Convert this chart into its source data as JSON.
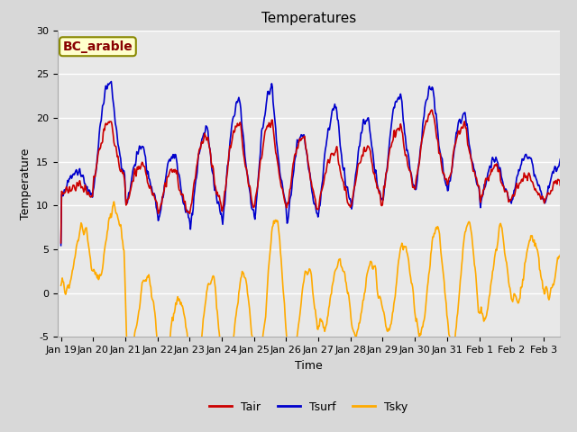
{
  "title": "Temperatures",
  "xlabel": "Time",
  "ylabel": "Temperature",
  "ylim": [
    -5,
    30
  ],
  "xlim_days": [
    -0.1,
    15.5
  ],
  "x_tick_labels": [
    "Jan 19",
    "Jan 20",
    "Jan 21",
    "Jan 22",
    "Jan 23",
    "Jan 24",
    "Jan 25",
    "Jan 26",
    "Jan 27",
    "Jan 28",
    "Jan 29",
    "Jan 30",
    "Jan 31",
    "Feb 1",
    "Feb 2",
    "Feb 3"
  ],
  "x_tick_positions": [
    0,
    1,
    2,
    3,
    4,
    5,
    6,
    7,
    8,
    9,
    10,
    11,
    12,
    13,
    14,
    15
  ],
  "yticks": [
    -5,
    0,
    5,
    10,
    15,
    20,
    25,
    30
  ],
  "color_tair": "#cc0000",
  "color_tsurf": "#0000cc",
  "color_tsky": "#ffaa00",
  "legend_label_tair": "Tair",
  "legend_label_tsurf": "Tsurf",
  "legend_label_tsky": "Tsky",
  "annotation_text": "BC_arable",
  "annotation_box_facecolor": "#ffffcc",
  "annotation_text_color": "#880000",
  "annotation_box_edgecolor": "#888800",
  "fig_facecolor": "#d8d8d8",
  "ax_facecolor": "#e8e8e8",
  "grid_color": "#ffffff",
  "title_fontsize": 11,
  "axis_label_fontsize": 9,
  "tick_fontsize": 8,
  "legend_fontsize": 9,
  "line_width": 1.2,
  "annotation_fontsize": 10
}
